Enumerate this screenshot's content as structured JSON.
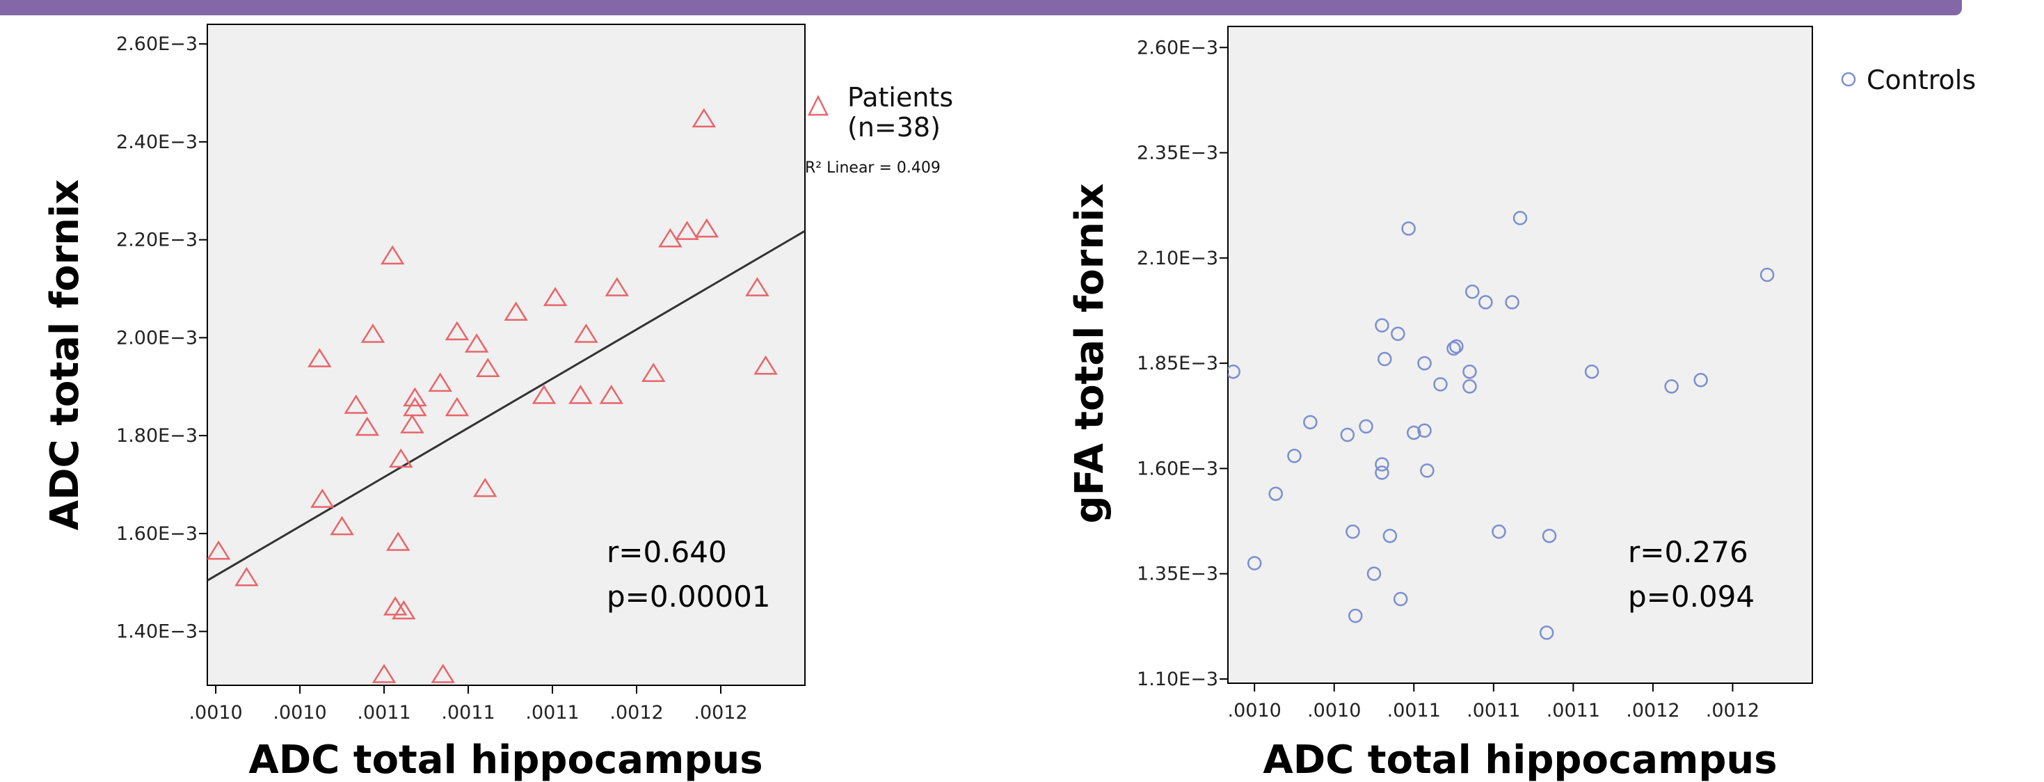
{
  "theme": {
    "banner_color": "#8367a6",
    "plot_bg": "#f0f0f0",
    "patients_color": "#e8656a",
    "controls_color": "#7b8fcf",
    "fit_line_color": "#333333"
  },
  "chart_data": [
    {
      "type": "scatter",
      "xlabel": "ADC total hippocampus",
      "ylabel": "ADC total fornix",
      "xlim": [
        0.000997,
        0.00121
      ],
      "ylim": [
        0.00129,
        0.00264
      ],
      "x_ticks": [
        {
          "value": 0.001,
          "label": ".0010"
        },
        {
          "value": 0.00103,
          "label": ".0010"
        },
        {
          "value": 0.00106,
          "label": ".0011"
        },
        {
          "value": 0.00109,
          "label": ".0011"
        },
        {
          "value": 0.00112,
          "label": ".0011"
        },
        {
          "value": 0.00115,
          "label": ".0012"
        },
        {
          "value": 0.00118,
          "label": ".0012"
        }
      ],
      "y_ticks": [
        {
          "value": 0.0014,
          "label": "1.40E−3"
        },
        {
          "value": 0.0016,
          "label": "1.60E−3"
        },
        {
          "value": 0.0018,
          "label": "1.80E−3"
        },
        {
          "value": 0.002,
          "label": "2.00E−3"
        },
        {
          "value": 0.0022,
          "label": "2.20E−3"
        },
        {
          "value": 0.0024,
          "label": "2.40E−3"
        },
        {
          "value": 0.0026,
          "label": "2.60E−3"
        }
      ],
      "series": [
        {
          "name": "Patients (n=38)",
          "marker": "triangle",
          "points": [
            [
              0.001001,
              0.001562
            ],
            [
              0.001011,
              0.001508
            ],
            [
              0.001037,
              0.001955
            ],
            [
              0.001038,
              0.001668
            ],
            [
              0.001045,
              0.001612
            ],
            [
              0.00105,
              0.00186
            ],
            [
              0.001054,
              0.001815
            ],
            [
              0.001056,
              0.002005
            ],
            [
              0.00106,
              0.00131
            ],
            [
              0.001063,
              0.002165
            ],
            [
              0.001064,
              0.001448
            ],
            [
              0.001065,
              0.00158
            ],
            [
              0.001066,
              0.00175
            ],
            [
              0.001067,
              0.00144
            ],
            [
              0.00107,
              0.00182
            ],
            [
              0.001071,
              0.001875
            ],
            [
              0.001071,
              0.001855
            ],
            [
              0.00108,
              0.001905
            ],
            [
              0.001081,
              0.00131
            ],
            [
              0.001086,
              0.00201
            ],
            [
              0.001086,
              0.001855
            ],
            [
              0.001093,
              0.001985
            ],
            [
              0.001096,
              0.00169
            ],
            [
              0.001097,
              0.001935
            ],
            [
              0.001107,
              0.00205
            ],
            [
              0.001117,
              0.00188
            ],
            [
              0.001121,
              0.00208
            ],
            [
              0.00113,
              0.00188
            ],
            [
              0.001132,
              0.002005
            ],
            [
              0.001141,
              0.00188
            ],
            [
              0.001143,
              0.0021
            ],
            [
              0.001156,
              0.001925
            ],
            [
              0.001162,
              0.0022
            ],
            [
              0.001168,
              0.002215
            ],
            [
              0.001174,
              0.002445
            ],
            [
              0.001175,
              0.00222
            ],
            [
              0.001193,
              0.0021
            ],
            [
              0.001196,
              0.00194
            ]
          ]
        }
      ],
      "fit_line": {
        "x": [
          0.000997,
          0.00121
        ],
        "y": [
          0.001504,
          0.002218
        ]
      },
      "legend": {
        "label_line1": "Patients",
        "label_line2": "(n=38)",
        "r2_text": "R² Linear = 0.409"
      },
      "annotation": {
        "line1": "r=0.640",
        "line2": "p=0.00001"
      }
    },
    {
      "type": "scatter",
      "xlabel": "ADC total hippocampus",
      "ylabel": "gFA total fornix",
      "xlim": [
        0.001,
        0.00122
      ],
      "ylim": [
        0.00109,
        0.00265
      ],
      "x_ticks": [
        {
          "value": 0.00101,
          "label": ".0010"
        },
        {
          "value": 0.00104,
          "label": ".0010"
        },
        {
          "value": 0.00107,
          "label": ".0011"
        },
        {
          "value": 0.0011,
          "label": ".0011"
        },
        {
          "value": 0.00113,
          "label": ".0011"
        },
        {
          "value": 0.00116,
          "label": ".0012"
        },
        {
          "value": 0.00119,
          "label": ".0012"
        }
      ],
      "y_ticks": [
        {
          "value": 0.0011,
          "label": "1.10E−3"
        },
        {
          "value": 0.00135,
          "label": "1.35E−3"
        },
        {
          "value": 0.0016,
          "label": "1.60E−3"
        },
        {
          "value": 0.00185,
          "label": "1.85E−3"
        },
        {
          "value": 0.0021,
          "label": "2.10E−3"
        },
        {
          "value": 0.00235,
          "label": "2.35E−3"
        },
        {
          "value": 0.0026,
          "label": "2.60E−3"
        }
      ],
      "series": [
        {
          "name": "Controls",
          "marker": "circle",
          "points": [
            [
              0.001002,
              0.00183
            ],
            [
              0.00101,
              0.001375
            ],
            [
              0.001018,
              0.00154
            ],
            [
              0.001025,
              0.00163
            ],
            [
              0.001031,
              0.00171
            ],
            [
              0.001045,
              0.00168
            ],
            [
              0.001047,
              0.00145
            ],
            [
              0.001048,
              0.00125
            ],
            [
              0.001052,
              0.0017
            ],
            [
              0.001055,
              0.00135
            ],
            [
              0.001058,
              0.00161
            ],
            [
              0.001058,
              0.00159
            ],
            [
              0.001058,
              0.00194
            ],
            [
              0.001059,
              0.00186
            ],
            [
              0.001061,
              0.00144
            ],
            [
              0.001064,
              0.00192
            ],
            [
              0.001065,
              0.00129
            ],
            [
              0.001068,
              0.00217
            ],
            [
              0.00107,
              0.001685
            ],
            [
              0.001074,
              0.00169
            ],
            [
              0.001074,
              0.00185
            ],
            [
              0.001075,
              0.001595
            ],
            [
              0.00108,
              0.0018
            ],
            [
              0.001085,
              0.001885
            ],
            [
              0.001086,
              0.00189
            ],
            [
              0.001091,
              0.00183
            ],
            [
              0.001091,
              0.001795
            ],
            [
              0.001092,
              0.00202
            ],
            [
              0.001097,
              0.001995
            ],
            [
              0.001102,
              0.00145
            ],
            [
              0.001107,
              0.001995
            ],
            [
              0.00111,
              0.002195
            ],
            [
              0.00112,
              0.00121
            ],
            [
              0.001121,
              0.00144
            ],
            [
              0.001137,
              0.00183
            ],
            [
              0.001167,
              0.001795
            ],
            [
              0.001178,
              0.00181
            ],
            [
              0.001203,
              0.00206
            ]
          ]
        }
      ],
      "legend": {
        "label_line1": "Controls"
      },
      "annotation": {
        "line1": "r=0.276",
        "line2": "p=0.094"
      }
    }
  ]
}
